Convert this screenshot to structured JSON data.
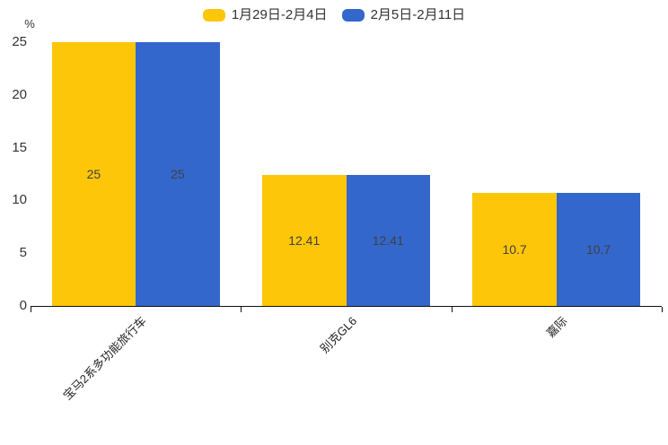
{
  "chart_data": {
    "type": "bar",
    "title": "",
    "categories": [
      "宝马2系多功能旅行车",
      "别克GL6",
      "嘉际"
    ],
    "series": [
      {
        "name": "1月29日-2月4日",
        "color": "#fdc609",
        "values": [
          25,
          12.41,
          10.7
        ]
      },
      {
        "name": "2月5日-2月11日",
        "color": "#3367cb",
        "values": [
          25,
          12.41,
          10.7
        ]
      }
    ],
    "value_labels": {
      "series0": [
        "25",
        "12.41",
        "10.7"
      ],
      "series1": [
        "25",
        "12.41",
        "10.7"
      ]
    },
    "y_unit": "%",
    "ylim": [
      0,
      25
    ],
    "yticks": [
      0,
      5,
      10,
      15,
      20,
      25
    ],
    "grid": false,
    "legend_position": "top-center",
    "value_label_position": "inside-center",
    "x_label_rotation_deg": 45,
    "axis_line_color": "#111111",
    "background_color": "#ffffff"
  }
}
